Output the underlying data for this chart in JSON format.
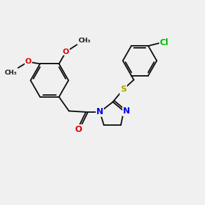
{
  "background_color": "#f0f0f0",
  "figsize": [
    3.0,
    3.0
  ],
  "dpi": 100,
  "bond_color": "#111111",
  "O_color": "#dd0000",
  "N_color": "#0000ee",
  "S_color": "#aaaa00",
  "Cl_color": "#00bb00",
  "lw": 1.4,
  "xlim": [
    0,
    10
  ],
  "ylim": [
    0,
    10
  ]
}
